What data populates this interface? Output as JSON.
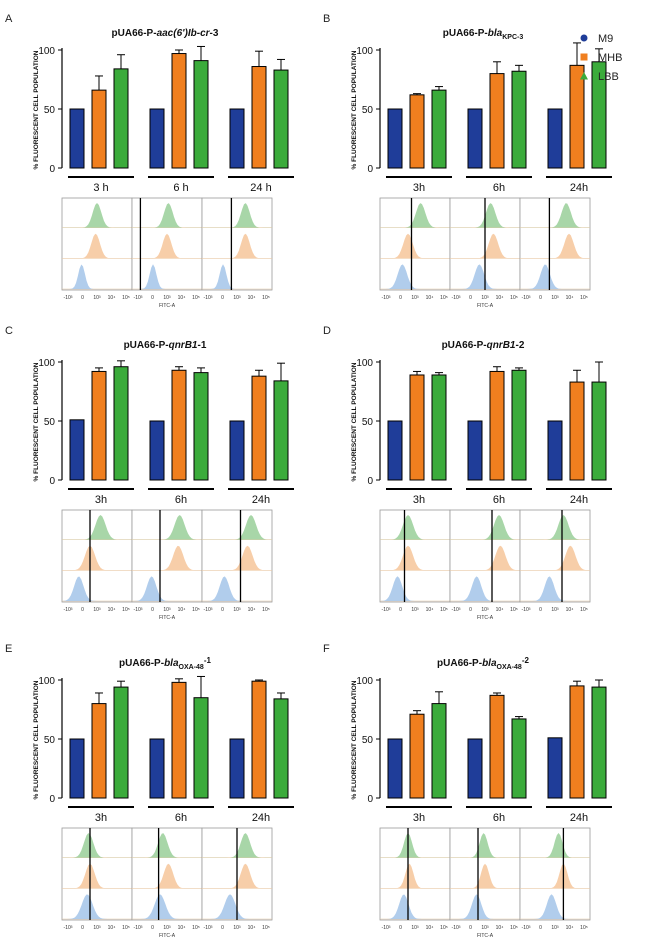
{
  "legend": [
    {
      "name": "M9",
      "color": "#1f3d99",
      "marker": "circle"
    },
    {
      "name": "MHB",
      "color": "#f07f1f",
      "marker": "square"
    },
    {
      "name": "LBB",
      "color": "#3bab3b",
      "marker": "triangle"
    }
  ],
  "colors": {
    "M9": "#1f3d99",
    "MHB": "#f07f1f",
    "LBB": "#3bab3b",
    "hist_M9": "#a9c8ea",
    "hist_MHB": "#f6c9a0",
    "hist_LBB": "#9fd19f"
  },
  "histogram_x_ticks": [
    "-10³",
    "0",
    "10³",
    "10⁴",
    "10⁵"
  ],
  "histogram_x_label": "FITC-A",
  "chart_data": [
    {
      "panel": "A",
      "type": "bar",
      "title_pre": "pUA66-P-",
      "title_it": "aac(6')Ib-cr",
      "title_post": "-3",
      "title_sub": "",
      "ylabel": "% FLUORESCENT CELL POPULATION",
      "ylim": [
        0,
        100
      ],
      "yticks": [
        "0",
        "50",
        "100"
      ],
      "categories": [
        "3 h",
        "6 h",
        "24 h"
      ],
      "series": [
        {
          "name": "M9",
          "values": [
            50,
            50,
            50
          ],
          "errors": [
            0,
            0,
            0
          ]
        },
        {
          "name": "MHB",
          "values": [
            66,
            97,
            86
          ],
          "errors": [
            12,
            3,
            13
          ]
        },
        {
          "name": "LBB",
          "values": [
            84,
            91,
            83
          ],
          "errors": [
            12,
            12,
            9
          ]
        }
      ]
    },
    {
      "panel": "B",
      "type": "bar",
      "title_pre": "pUA66-P-",
      "title_it": "bla",
      "title_post": "",
      "title_sub": "KPC-3",
      "ylabel": "% FLUORESCENT CELL POPULATION",
      "ylim": [
        0,
        100
      ],
      "yticks": [
        "0",
        "50",
        "100"
      ],
      "categories": [
        "3h",
        "6h",
        "24h"
      ],
      "series": [
        {
          "name": "M9",
          "values": [
            50,
            50,
            50
          ],
          "errors": [
            0,
            0,
            0
          ]
        },
        {
          "name": "MHB",
          "values": [
            62,
            80,
            87
          ],
          "errors": [
            1,
            10,
            19
          ]
        },
        {
          "name": "LBB",
          "values": [
            66,
            82,
            90
          ],
          "errors": [
            3,
            5,
            11
          ]
        }
      ]
    },
    {
      "panel": "C",
      "type": "bar",
      "title_pre": "pUA66-P-",
      "title_it": "qnrB1",
      "title_post": "-1",
      "title_sub": "",
      "ylabel": "% FLUORESCENT CELL POPULATION",
      "ylim": [
        0,
        100
      ],
      "yticks": [
        "0",
        "50",
        "100"
      ],
      "categories": [
        "3h",
        "6h",
        "24h"
      ],
      "series": [
        {
          "name": "M9",
          "values": [
            51,
            50,
            50
          ],
          "errors": [
            0,
            0,
            0
          ]
        },
        {
          "name": "MHB",
          "values": [
            92,
            93,
            88
          ],
          "errors": [
            3,
            3,
            5
          ]
        },
        {
          "name": "LBB",
          "values": [
            96,
            91,
            84
          ],
          "errors": [
            5,
            4,
            15
          ]
        }
      ]
    },
    {
      "panel": "D",
      "type": "bar",
      "title_pre": "pUA66-P-",
      "title_it": "qnrB1",
      "title_post": "-2",
      "title_sub": "",
      "ylabel": "% FLUORESCENT CELL POPULATION",
      "ylim": [
        0,
        100
      ],
      "yticks": [
        "0",
        "50",
        "100"
      ],
      "categories": [
        "3h",
        "6h",
        "24h"
      ],
      "series": [
        {
          "name": "M9",
          "values": [
            50,
            50,
            50
          ],
          "errors": [
            0,
            0,
            0
          ]
        },
        {
          "name": "MHB",
          "values": [
            89,
            92,
            83
          ],
          "errors": [
            3,
            4,
            10
          ]
        },
        {
          "name": "LBB",
          "values": [
            89,
            93,
            83
          ],
          "errors": [
            2,
            2,
            17
          ]
        }
      ]
    },
    {
      "panel": "E",
      "type": "bar",
      "title_pre": "pUA66-P-",
      "title_it": "bla",
      "title_post": "-1",
      "title_sub": "OXA-48",
      "ylabel": "% FLUORESCENT CELL POPULATION",
      "ylim": [
        0,
        100
      ],
      "yticks": [
        "0",
        "50",
        "100"
      ],
      "categories": [
        "3h",
        "6h",
        "24h"
      ],
      "series": [
        {
          "name": "M9",
          "values": [
            50,
            50,
            50
          ],
          "errors": [
            0,
            0,
            0
          ]
        },
        {
          "name": "MHB",
          "values": [
            80,
            98,
            99
          ],
          "errors": [
            9,
            3,
            1
          ]
        },
        {
          "name": "LBB",
          "values": [
            94,
            85,
            84
          ],
          "errors": [
            5,
            18,
            5
          ]
        }
      ]
    },
    {
      "panel": "F",
      "type": "bar",
      "title_pre": "pUA66-P-",
      "title_it": "bla",
      "title_post": "-2",
      "title_sub": "OXA-48",
      "ylabel": "% FLUORESCENT CELL POPULATION",
      "ylim": [
        0,
        100
      ],
      "yticks": [
        "0",
        "50",
        "100"
      ],
      "categories": [
        "3h",
        "6h",
        "24h"
      ],
      "series": [
        {
          "name": "M9",
          "values": [
            50,
            50,
            51
          ],
          "errors": [
            0,
            0,
            0
          ]
        },
        {
          "name": "MHB",
          "values": [
            71,
            87,
            95
          ],
          "errors": [
            3,
            2,
            4
          ]
        },
        {
          "name": "LBB",
          "values": [
            80,
            67,
            94
          ],
          "errors": [
            10,
            2,
            6
          ]
        }
      ]
    }
  ]
}
